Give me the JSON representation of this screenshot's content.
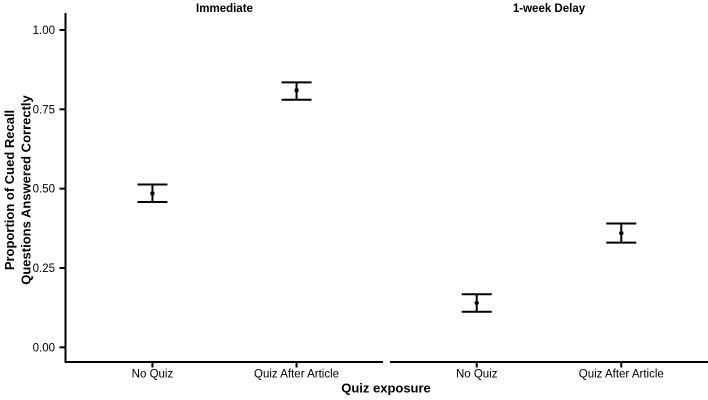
{
  "chart_data": {
    "type": "scatter",
    "subtype": "point-estimates-with-error-bars",
    "title": "",
    "xlabel": "Quiz exposure",
    "ylabel": "Proportion of Cued Recall Questions Answered Correctly",
    "ylabel_lines": [
      "Proportion of Cued Recall",
      "Questions Answered Correctly"
    ],
    "ylim": [
      0,
      1
    ],
    "ytick_values": [
      0,
      0.25,
      0.5,
      0.75,
      1.0
    ],
    "ytick_labels": [
      "0.00",
      "0.25",
      "0.50",
      "0.75",
      "1.00"
    ],
    "categories": [
      "No Quiz",
      "Quiz After Article"
    ],
    "grid": false,
    "legend_position": "none",
    "colors": {
      "foreground": "#000000",
      "background": "#ffffff"
    },
    "facets": [
      {
        "label": "Immediate",
        "points": [
          {
            "category": "No Quiz",
            "value": 0.485,
            "ci_low": 0.458,
            "ci_high": 0.513
          },
          {
            "category": "Quiz After Article",
            "value": 0.81,
            "ci_low": 0.78,
            "ci_high": 0.835
          }
        ]
      },
      {
        "label": "1-week Delay",
        "points": [
          {
            "category": "No Quiz",
            "value": 0.14,
            "ci_low": 0.112,
            "ci_high": 0.167
          },
          {
            "category": "Quiz After Article",
            "value": 0.36,
            "ci_low": 0.33,
            "ci_high": 0.39
          }
        ]
      }
    ]
  }
}
